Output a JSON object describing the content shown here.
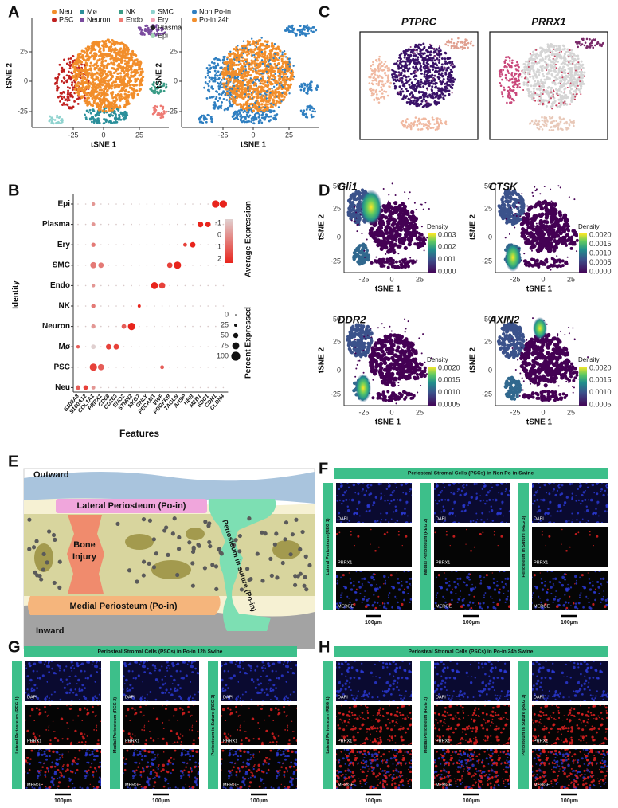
{
  "A": {
    "label": "A",
    "legend": [
      {
        "name": "Neu",
        "color": "#f28e2b"
      },
      {
        "name": "PSC",
        "color": "#c0201f"
      },
      {
        "name": "Mø",
        "color": "#2a8f9a"
      },
      {
        "name": "Neuron",
        "color": "#7a4b9e"
      },
      {
        "name": "NK",
        "color": "#3a9c86"
      },
      {
        "name": "Endo",
        "color": "#ee7b74"
      },
      {
        "name": "SMC",
        "color": "#8fd3cf"
      },
      {
        "name": "Ery",
        "color": "#f2a3b5"
      },
      {
        "name": "Plasma",
        "color": "#222222"
      },
      {
        "name": "Epi",
        "color": "#a3d6b6"
      }
    ],
    "legend2": [
      {
        "name": "Non Po-in",
        "color": "#2f7fc1"
      },
      {
        "name": "Po-in 24h",
        "color": "#f28e2b"
      }
    ],
    "xlabel": "tSNE 1",
    "ylabel": "tSNE 2",
    "xticks": [
      "-25",
      "0",
      "25"
    ],
    "yticks": [
      "25",
      "0",
      "-25"
    ]
  },
  "B": {
    "label": "B",
    "identity_label": "Identity",
    "features_label": "Features",
    "identities": [
      "Epi",
      "Plasma",
      "Ery",
      "SMC",
      "Endo",
      "NK",
      "Neuron",
      "Mø",
      "PSC",
      "Neu"
    ],
    "features": [
      "S100A8",
      "S100A12",
      "COL1A1",
      "PRRX1",
      "CD68",
      "CD163",
      "ENO2",
      "STMN2",
      "NKG7",
      "GNLY",
      "PECAM1",
      "VWF",
      "PDGFRB",
      "TAGLN",
      "AHSP",
      "HBB",
      "MZB1",
      "SDC1",
      "CDH1",
      "CLDN4"
    ],
    "avg_title": "Average Expression",
    "avg_ticks": [
      "-1",
      "0",
      "1",
      "2"
    ],
    "pct_title": "Percent Expressed",
    "pct_ticks": [
      "0",
      "25",
      "50",
      "75",
      "100"
    ],
    "points": [
      {
        "identity": "Epi",
        "feature": "CDH1",
        "pct": 75,
        "avg": 2
      },
      {
        "identity": "Epi",
        "feature": "CLDN4",
        "pct": 75,
        "avg": 2
      },
      {
        "identity": "Epi",
        "feature": "COL1A1",
        "pct": 25,
        "avg": 0
      },
      {
        "identity": "Plasma",
        "feature": "MZB1",
        "pct": 55,
        "avg": 2
      },
      {
        "identity": "Plasma",
        "feature": "SDC1",
        "pct": 50,
        "avg": 2
      },
      {
        "identity": "Plasma",
        "feature": "COL1A1",
        "pct": 30,
        "avg": 0
      },
      {
        "identity": "Ery",
        "feature": "HBB",
        "pct": 50,
        "avg": 2
      },
      {
        "identity": "Ery",
        "feature": "AHSP",
        "pct": 30,
        "avg": 1.5
      },
      {
        "identity": "Ery",
        "feature": "COL1A1",
        "pct": 35,
        "avg": 0.5
      },
      {
        "identity": "SMC",
        "feature": "TAGLN",
        "pct": 75,
        "avg": 2
      },
      {
        "identity": "SMC",
        "feature": "PDGFRB",
        "pct": 50,
        "avg": 1.5
      },
      {
        "identity": "SMC",
        "feature": "COL1A1",
        "pct": 60,
        "avg": 0.5
      },
      {
        "identity": "SMC",
        "feature": "PRRX1",
        "pct": 50,
        "avg": 0.5
      },
      {
        "identity": "Endo",
        "feature": "PECAM1",
        "pct": 70,
        "avg": 2
      },
      {
        "identity": "Endo",
        "feature": "VWF",
        "pct": 60,
        "avg": 1.5
      },
      {
        "identity": "Endo",
        "feature": "COL1A1",
        "pct": 25,
        "avg": 0
      },
      {
        "identity": "NK",
        "feature": "NKG7",
        "pct": 20,
        "avg": 2
      },
      {
        "identity": "NK",
        "feature": "COL1A1",
        "pct": 35,
        "avg": 0.5
      },
      {
        "identity": "Neuron",
        "feature": "STMN2",
        "pct": 75,
        "avg": 2
      },
      {
        "identity": "Neuron",
        "feature": "ENO2",
        "pct": 40,
        "avg": 1
      },
      {
        "identity": "Neuron",
        "feature": "COL1A1",
        "pct": 35,
        "avg": 0
      },
      {
        "identity": "Mø",
        "feature": "CD68",
        "pct": 50,
        "avg": 1.5
      },
      {
        "identity": "Mø",
        "feature": "CD163",
        "pct": 50,
        "avg": 1.5
      },
      {
        "identity": "Mø",
        "feature": "S100A8",
        "pct": 25,
        "avg": 1
      },
      {
        "identity": "Mø",
        "feature": "COL1A1",
        "pct": 40,
        "avg": -1
      },
      {
        "identity": "PSC",
        "feature": "COL1A1",
        "pct": 75,
        "avg": 1.5
      },
      {
        "identity": "PSC",
        "feature": "PRRX1",
        "pct": 60,
        "avg": 1
      },
      {
        "identity": "PSC",
        "feature": "VWF",
        "pct": 30,
        "avg": 1
      },
      {
        "identity": "Neu",
        "feature": "S100A12",
        "pct": 40,
        "avg": 1.5
      },
      {
        "identity": "Neu",
        "feature": "S100A8",
        "pct": 40,
        "avg": 1
      },
      {
        "identity": "Neu",
        "feature": "COL1A1",
        "pct": 30,
        "avg": 0
      }
    ]
  },
  "C": {
    "label": "C",
    "genes": [
      "PTPRC",
      "PRRX1"
    ]
  },
  "D": {
    "label": "D",
    "xlabel": "tSNE 1",
    "ylabel": "tSNE 2",
    "xticks": [
      "-25",
      "0",
      "25"
    ],
    "yticks": [
      "50",
      "25",
      "0",
      "-25"
    ],
    "legend_title": "Density",
    "plots": [
      {
        "gene": "Gli1",
        "ticks": [
          "0.003",
          "0.002",
          "0.001",
          "0.000"
        ]
      },
      {
        "gene": "CTSK",
        "ticks": [
          "0.0020",
          "0.0015",
          "0.0010",
          "0.0005",
          "0.0000"
        ]
      },
      {
        "gene": "DDR2",
        "ticks": [
          "0.0020",
          "0.0015",
          "0.0010",
          "0.0005"
        ]
      },
      {
        "gene": "AXIN2",
        "ticks": [
          "0.0020",
          "0.0015",
          "0.0010",
          "0.0005"
        ]
      }
    ]
  },
  "E": {
    "label": "E",
    "outward": "Outward",
    "inward": "Inward",
    "lateral": "Lateral Periosteum (Po-in)",
    "bone": [
      "Bone",
      "Injury"
    ],
    "suture": "Periosteum in suture (Po-in)",
    "medial": "Medial Periosteum (Po-in)"
  },
  "F": {
    "label": "F",
    "header": "Periosteal Stromal Cells (PSCs) in Non Po-in Swine",
    "columns": [
      "Lateral Periosteum (REG 1)",
      "Medial Periosteum (REG 2)",
      "Periosteum in Suture (REG 3)"
    ],
    "channels": [
      "DAPI",
      "PRRX1",
      "MERGE"
    ],
    "scale": "100µm"
  },
  "G": {
    "label": "G",
    "header": "Periosteal Stromal Cells (PSCs) in Po-in 12h Swine",
    "columns": [
      "Lateral Periosteum (REG 1)",
      "Medial Periosteum (REG 2)",
      "Periosteum in Suture (REG 3)"
    ],
    "channels": [
      "DAPI",
      "PRRX1",
      "MERGE"
    ],
    "scale": "100µm"
  },
  "H": {
    "label": "H",
    "header": "Periosteal Stromal Cells (PSCs) in Po-in 24h Swine",
    "columns": [
      "Lateral Periosteum (REG 1)",
      "Medial Periosteum (REG 2)",
      "Periosteum in Suture (REG 3)"
    ],
    "channels": [
      "DAPI",
      "PRRX1",
      "MERGE"
    ],
    "scale": "100µm"
  }
}
